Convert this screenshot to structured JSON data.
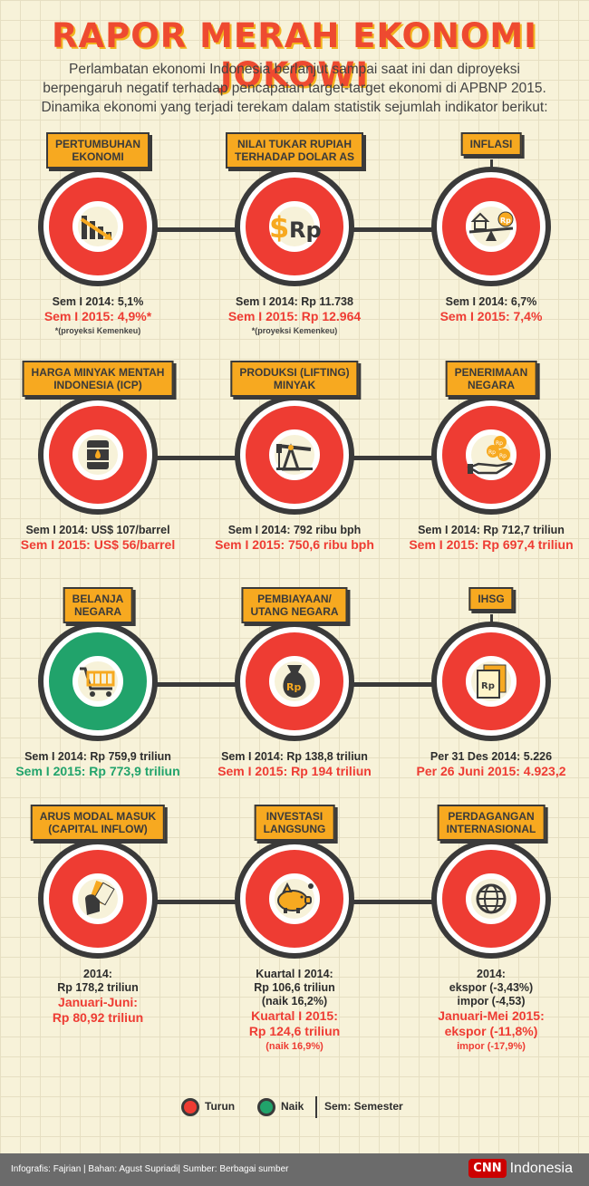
{
  "title": "RAPOR MERAH EKONOMI JOKOWI",
  "intro": "Perlambatan ekonomi Indonesia berlanjut sampai saat ini dan diproyeksi berpengaruh negatif terhadap pencapaian target-target ekonomi di APBNP 2015. Dinamika ekonomi yang terjadi terekam dalam statistik sejumlah indikator berikut:",
  "rows": [
    [
      {
        "label1": "PERTUMBUHAN",
        "label2": "EKONOMI",
        "icon": "chart-down-icon",
        "status": "turun",
        "line1": "Sem I 2014: 5,1%",
        "line2": "Sem I 2015: 4,9%*",
        "note": "*(proyeksi Kemenkeu)"
      },
      {
        "label1": "NILAI TUKAR RUPIAH",
        "label2": "TERHADAP DOLAR AS",
        "icon": "dollar-rupiah-icon",
        "status": "turun",
        "line1": "Sem I 2014: Rp 11.738",
        "line2": "Sem I 2015: Rp 12.964",
        "note": "*(proyeksi Kemenkeu)"
      },
      {
        "label1": "INFLASI",
        "label2": "",
        "icon": "house-scale-icon",
        "status": "turun",
        "line1": "Sem I 2014: 6,7%",
        "line2": "Sem I 2015: 7,4%",
        "note": ""
      }
    ],
    [
      {
        "label1": "HARGA MINYAK MENTAH",
        "label2": "INDONESIA (ICP)",
        "icon": "oil-barrel-icon",
        "status": "turun",
        "line1": "Sem I 2014: US$ 107/barrel",
        "line2": "Sem I 2015: US$ 56/barrel",
        "note": ""
      },
      {
        "label1": "PRODUKSI (LIFTING)",
        "label2": "MINYAK",
        "icon": "oil-pump-icon",
        "status": "turun",
        "line1": "Sem I 2014: 792 ribu bph",
        "line2": "Sem I 2015: 750,6 ribu bph",
        "note": ""
      },
      {
        "label1": "PENERIMAAN",
        "label2": "NEGARA",
        "icon": "hand-coins-icon",
        "status": "turun",
        "line1": "Sem I 2014: Rp 712,7 triliun",
        "line2": "Sem I 2015: Rp 697,4 triliun",
        "note": ""
      }
    ],
    [
      {
        "label1": "BELANJA",
        "label2": "NEGARA",
        "icon": "shopping-cart-icon",
        "status": "naik",
        "line1": "Sem I 2014: Rp 759,9 triliun",
        "line2": "Sem I 2015: Rp 773,9 triliun",
        "note": ""
      },
      {
        "label1": "PEMBIAYAAN/",
        "label2": "UTANG NEGARA",
        "icon": "money-bag-icon",
        "status": "turun",
        "line1": "Sem I 2014: Rp 138,8 triliun",
        "line2": "Sem I 2015: Rp 194 triliun",
        "note": ""
      },
      {
        "label1": "IHSG",
        "label2": "",
        "icon": "stock-paper-icon",
        "status": "turun",
        "line1": "Per 31 Des 2014: 5.226",
        "line2": "Per 26 Juni 2015: 4.923,2",
        "note": ""
      }
    ],
    [
      {
        "label1": "ARUS MODAL MASUK",
        "label2": "(CAPITAL INFLOW)",
        "icon": "hand-cash-icon",
        "status": "turun",
        "line1": "2014:",
        "line1b": "Rp 178,2 triliun",
        "line2": "Januari-Juni:",
        "line2b": "Rp 80,92 triliun",
        "note": ""
      },
      {
        "label1": "INVESTASI",
        "label2": "LANGSUNG",
        "icon": "piggy-bank-icon",
        "status": "turun",
        "line1": "Kuartal I 2014:",
        "line1b": "Rp 106,6 triliun",
        "line1c": "(naik 16,2%)",
        "line2": "Kuartal I 2015:",
        "line2b": "Rp 124,6 triliun",
        "line2c": "(naik 16,9%)",
        "note": ""
      },
      {
        "label1": "PERDAGANGAN",
        "label2": "INTERNASIONAL",
        "icon": "globe-icon",
        "status": "turun",
        "line1": "2014:",
        "line1b": "ekspor (-3,43%)",
        "line1c": "impor (-4,53)",
        "line2": "Januari-Mei 2015:",
        "line2b": "ekspor (-11,8%)",
        "line2c": "impor (-17,9%)",
        "note": ""
      }
    ]
  ],
  "legend": {
    "turun": "Turun",
    "naik": "Naik",
    "sem": "Sem: Semester"
  },
  "footer": {
    "credit": "Infografis: Fajrian | Bahan: Agust Supriadi| Sumber: Berbagai sumber",
    "logo": "CNN",
    "brand": "Indonesia"
  },
  "colors": {
    "turun": "#ee3c33",
    "naik": "#21a36b",
    "label": "#f7a920"
  }
}
